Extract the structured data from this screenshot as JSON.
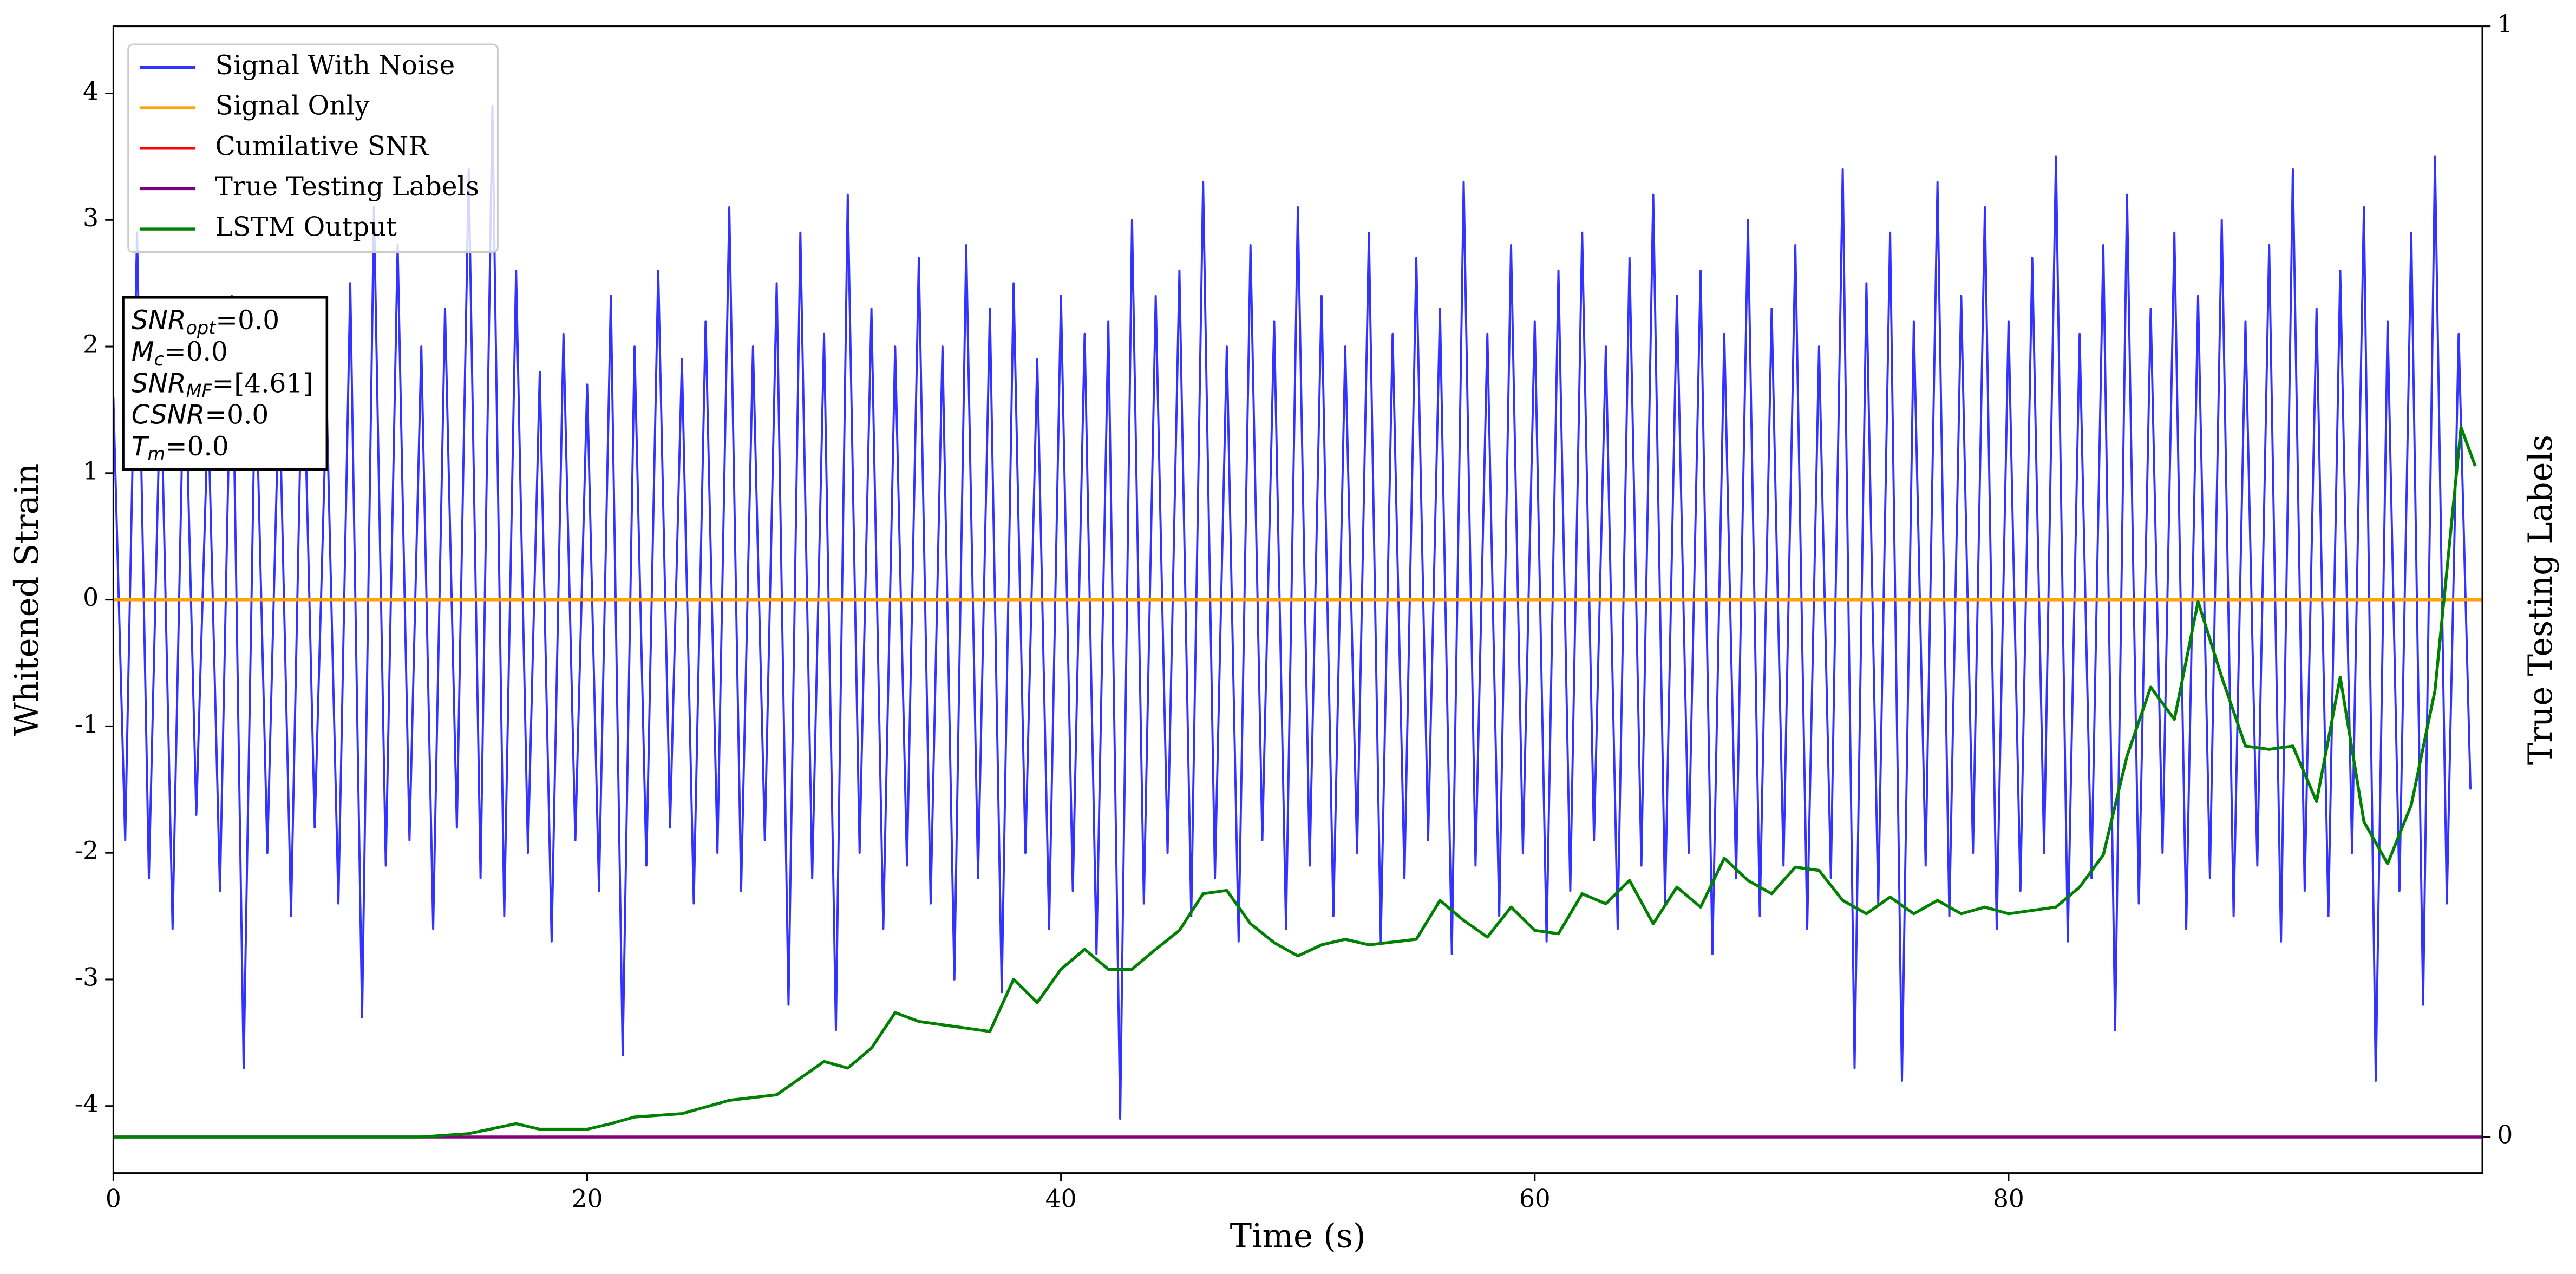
{
  "chart_data": {
    "type": "line",
    "xlabel": "Time (s)",
    "ylabel": "Whitened Strain",
    "y2label": "True Testing Labels",
    "xlim": [
      0,
      100
    ],
    "xticks": [
      0,
      20,
      40,
      60,
      80
    ],
    "ylim": [
      -4.53,
      4.53
    ],
    "yticks": [
      -4,
      -3,
      -2,
      -1,
      0,
      1,
      2,
      3,
      4
    ],
    "y2lim": [
      -0.0325,
      1
    ],
    "y2ticks": [
      0,
      1
    ],
    "legend": "upper left",
    "annotations": [
      {
        "main": "SNR",
        "sub": "opt",
        "rest": "=0.0"
      },
      {
        "main": "M",
        "sub": "c",
        "rest": "=0.0"
      },
      {
        "main": "SNR",
        "sub": "MF",
        "rest": "=[4.61]"
      },
      {
        "main": "CSNR",
        "sub": null,
        "rest": "=0.0"
      },
      {
        "main": "T",
        "sub": "m",
        "rest": "=0.0"
      }
    ],
    "series": [
      {
        "name": "Signal With Noise",
        "color": "#3333ff",
        "x": [
          0,
          0.5,
          1,
          1.5,
          2,
          2.5,
          3,
          3.5,
          4,
          4.5,
          5,
          5.5,
          6,
          6.5,
          7,
          7.5,
          8,
          8.5,
          9,
          9.5,
          10,
          10.5,
          11,
          11.5,
          12,
          12.5,
          13,
          13.5,
          14,
          14.5,
          15,
          15.5,
          16,
          16.5,
          17,
          17.5,
          18,
          18.5,
          19,
          19.5,
          20,
          20.5,
          21,
          21.5,
          22,
          22.5,
          23,
          23.5,
          24,
          24.5,
          25,
          25.5,
          26,
          26.5,
          27,
          27.5,
          28,
          28.5,
          29,
          29.5,
          30,
          30.5,
          31,
          31.5,
          32,
          32.5,
          33,
          33.5,
          34,
          34.5,
          35,
          35.5,
          36,
          36.5,
          37,
          37.5,
          38,
          38.5,
          39,
          39.5,
          40,
          40.5,
          41,
          41.5,
          42,
          42.5,
          43,
          43.5,
          44,
          44.5,
          45,
          45.5,
          46,
          46.5,
          47,
          47.5,
          48,
          48.5,
          49,
          49.5,
          50,
          50.5,
          51,
          51.5,
          52,
          52.5,
          53,
          53.5,
          54,
          54.5,
          55,
          55.5,
          56,
          56.5,
          57,
          57.5,
          58,
          58.5,
          59,
          59.5,
          60,
          60.5,
          61,
          61.5,
          62,
          62.5,
          63,
          63.5,
          64,
          64.5,
          65,
          65.5,
          66,
          66.5,
          67,
          67.5,
          68,
          68.5,
          69,
          69.5,
          70,
          70.5,
          71,
          71.5,
          72,
          72.5,
          73,
          73.5,
          74,
          74.5,
          75,
          75.5,
          76,
          76.5,
          77,
          77.5,
          78,
          78.5,
          79,
          79.5,
          80,
          80.5,
          81,
          81.5,
          82,
          82.5,
          83,
          83.5,
          84,
          84.5,
          85,
          85.5,
          86,
          86.5,
          87,
          87.5,
          88,
          88.5,
          89,
          89.5,
          90,
          90.5,
          91,
          91.5,
          92,
          92.5,
          93,
          93.5,
          94,
          94.5,
          95,
          95.5,
          96,
          96.5,
          97,
          97.5,
          98,
          98.5,
          99,
          99.5
        ],
        "values": [
          1.6,
          -1.9,
          2.9,
          -2.2,
          1.8,
          -2.6,
          2.1,
          -1.7,
          1.5,
          -2.3,
          2.4,
          -3.7,
          1.9,
          -2.0,
          1.7,
          -2.5,
          2.2,
          -1.8,
          1.6,
          -2.4,
          2.5,
          -3.3,
          3.1,
          -2.1,
          2.8,
          -1.9,
          2.0,
          -2.6,
          2.3,
          -1.8,
          3.4,
          -2.2,
          3.9,
          -2.5,
          2.6,
          -2.0,
          1.8,
          -2.7,
          2.1,
          -1.9,
          1.7,
          -2.3,
          2.4,
          -3.6,
          2.0,
          -2.1,
          2.6,
          -1.8,
          1.9,
          -2.4,
          2.2,
          -2.0,
          3.1,
          -2.3,
          2.0,
          -1.9,
          2.5,
          -3.2,
          2.9,
          -2.2,
          2.1,
          -3.4,
          3.2,
          -2.0,
          2.3,
          -2.6,
          2.0,
          -2.1,
          2.7,
          -2.4,
          2.0,
          -3.0,
          2.8,
          -2.2,
          2.3,
          -3.1,
          2.5,
          -2.0,
          1.9,
          -2.6,
          2.4,
          -2.3,
          2.1,
          -2.8,
          2.2,
          -4.1,
          3.0,
          -2.4,
          2.4,
          -2.0,
          2.6,
          -2.5,
          3.3,
          -2.2,
          2.0,
          -2.7,
          2.8,
          -1.9,
          2.2,
          -2.6,
          3.1,
          -2.1,
          2.4,
          -2.5,
          2.0,
          -2.0,
          2.9,
          -2.7,
          2.1,
          -2.2,
          2.7,
          -1.9,
          2.3,
          -2.8,
          3.3,
          -2.1,
          2.1,
          -2.5,
          2.8,
          -2.0,
          2.2,
          -2.7,
          2.6,
          -2.3,
          2.9,
          -1.9,
          2.0,
          -2.6,
          2.7,
          -2.1,
          3.2,
          -2.4,
          2.4,
          -2.0,
          2.6,
          -2.8,
          2.1,
          -2.2,
          3.0,
          -2.5,
          2.3,
          -2.1,
          2.8,
          -2.6,
          2.0,
          -2.2,
          3.4,
          -3.7,
          2.5,
          -2.4,
          2.9,
          -3.8,
          2.2,
          -2.1,
          3.3,
          -2.5,
          2.4,
          -2.0,
          3.1,
          -2.6,
          2.2,
          -2.3,
          2.7,
          -2.0,
          3.5,
          -2.7,
          2.1,
          -2.2,
          2.8,
          -3.4,
          3.2,
          -2.4,
          2.3,
          -2.0,
          2.9,
          -2.6,
          2.4,
          -2.2,
          3.0,
          -2.5,
          2.2,
          -2.1,
          2.8,
          -2.7,
          3.4,
          -2.3,
          2.3,
          -2.5,
          2.6,
          -2.0,
          3.1,
          -3.8,
          2.2,
          -2.3,
          2.9,
          -3.2,
          3.5,
          -2.4,
          2.1,
          -1.5
        ]
      },
      {
        "name": "Signal Only",
        "color": "#ffa500",
        "x": [
          0,
          100
        ],
        "values": [
          0,
          0
        ]
      },
      {
        "name": "Cumilative SNR",
        "color": "#ff0000",
        "x": [
          0,
          100
        ],
        "values": [
          0,
          0
        ]
      },
      {
        "name": "True Testing Labels",
        "color": "#800080",
        "axis": "y2",
        "x": [
          0,
          100
        ],
        "values": [
          0,
          0
        ]
      },
      {
        "name": "LSTM Output",
        "color": "#008000",
        "axis": "y2",
        "x": [
          0,
          13,
          15,
          17,
          18,
          20,
          21,
          22,
          24,
          26,
          28,
          30,
          31,
          32,
          33,
          34,
          36,
          37,
          38,
          39,
          40,
          41,
          42,
          43,
          44,
          45,
          46,
          47,
          48,
          49,
          50,
          51,
          52,
          53,
          55,
          56,
          57,
          58,
          59,
          60,
          61,
          62,
          63,
          64,
          65,
          66,
          67,
          68,
          69,
          70,
          71,
          72,
          73,
          74,
          75,
          76,
          77,
          78,
          79,
          80,
          82,
          83,
          84,
          85,
          86,
          87,
          88,
          89,
          90,
          91,
          92,
          93,
          94,
          95,
          96,
          97,
          98,
          99.1,
          99.7
        ],
        "values": [
          0,
          0,
          0.003,
          0.012,
          0.007,
          0.007,
          0.012,
          0.018,
          0.021,
          0.033,
          0.038,
          0.068,
          0.062,
          0.08,
          0.112,
          0.104,
          0.098,
          0.095,
          0.142,
          0.121,
          0.151,
          0.169,
          0.151,
          0.151,
          0.169,
          0.186,
          0.219,
          0.222,
          0.192,
          0.175,
          0.163,
          0.173,
          0.178,
          0.173,
          0.178,
          0.213,
          0.195,
          0.18,
          0.207,
          0.186,
          0.183,
          0.219,
          0.21,
          0.231,
          0.192,
          0.225,
          0.207,
          0.251,
          0.231,
          0.219,
          0.243,
          0.24,
          0.213,
          0.201,
          0.216,
          0.201,
          0.213,
          0.201,
          0.207,
          0.201,
          0.207,
          0.225,
          0.254,
          0.343,
          0.405,
          0.376,
          0.482,
          0.414,
          0.352,
          0.349,
          0.352,
          0.302,
          0.414,
          0.284,
          0.246,
          0.299,
          0.402,
          0.639,
          0.604
        ]
      }
    ]
  }
}
